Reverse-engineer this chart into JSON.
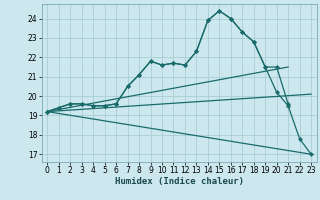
{
  "title": "",
  "xlabel": "Humidex (Indice chaleur)",
  "ylabel": "",
  "bg_color": "#cce8ee",
  "grid_color": "#aacdd4",
  "line_color": "#1a6b6b",
  "xlim": [
    -0.5,
    23.5
  ],
  "ylim": [
    16.6,
    24.75
  ],
  "yticks": [
    17,
    18,
    19,
    20,
    21,
    22,
    23,
    24
  ],
  "xticks": [
    0,
    1,
    2,
    3,
    4,
    5,
    6,
    7,
    8,
    9,
    10,
    11,
    12,
    13,
    14,
    15,
    16,
    17,
    18,
    19,
    20,
    21,
    22,
    23
  ],
  "line1_x": [
    0,
    1,
    2,
    3,
    4,
    5,
    6,
    7,
    8,
    9,
    10,
    11,
    12,
    13,
    14,
    15,
    16,
    17,
    18,
    19,
    20,
    21
  ],
  "line1_y": [
    19.2,
    19.4,
    19.6,
    19.6,
    19.5,
    19.5,
    19.6,
    20.5,
    21.1,
    21.8,
    21.6,
    21.7,
    21.6,
    22.3,
    23.9,
    24.4,
    24.0,
    23.3,
    22.8,
    21.5,
    21.5,
    19.6
  ],
  "line2_x": [
    0,
    1,
    2,
    3,
    4,
    5,
    6,
    7,
    8,
    9,
    10,
    11,
    12,
    13,
    14,
    15,
    16,
    17,
    18,
    19,
    20,
    21,
    22,
    23
  ],
  "line2_y": [
    19.2,
    19.4,
    19.6,
    19.6,
    19.5,
    19.5,
    19.6,
    20.5,
    21.1,
    21.8,
    21.6,
    21.7,
    21.6,
    22.3,
    23.9,
    24.4,
    24.0,
    23.3,
    22.8,
    21.5,
    20.2,
    19.5,
    17.8,
    17.0
  ],
  "line3_x": [
    0,
    21
  ],
  "line3_y": [
    19.2,
    21.5
  ],
  "line4_x": [
    0,
    23
  ],
  "line4_y": [
    19.2,
    20.1
  ],
  "line5_x": [
    0,
    23
  ],
  "line5_y": [
    19.2,
    17.0
  ]
}
